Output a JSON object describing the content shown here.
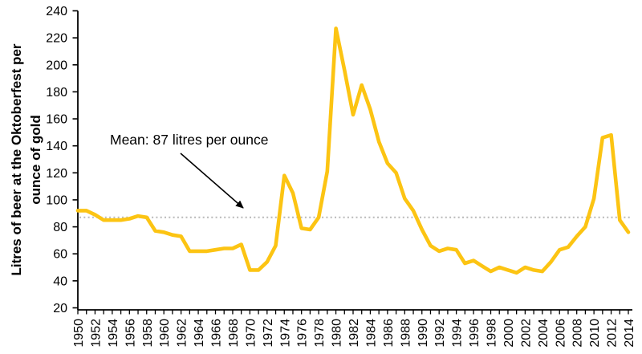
{
  "chart_data": {
    "type": "line",
    "title": "",
    "ylabel_lines": [
      "Litres of beer at the Oktoberfest per",
      "ounce of gold"
    ],
    "xlabel": "",
    "x": [
      1950,
      1951,
      1952,
      1953,
      1954,
      1955,
      1956,
      1957,
      1958,
      1959,
      1960,
      1961,
      1962,
      1963,
      1964,
      1965,
      1966,
      1967,
      1968,
      1969,
      1970,
      1971,
      1972,
      1973,
      1974,
      1975,
      1976,
      1977,
      1978,
      1979,
      1980,
      1981,
      1982,
      1983,
      1984,
      1985,
      1986,
      1987,
      1988,
      1989,
      1990,
      1991,
      1992,
      1993,
      1994,
      1995,
      1996,
      1997,
      1998,
      1999,
      2000,
      2001,
      2002,
      2003,
      2004,
      2005,
      2006,
      2007,
      2008,
      2009,
      2010,
      2011,
      2012,
      2013,
      2014
    ],
    "series": [
      {
        "name": "Litres of beer at the Oktoberfest per ounce of gold",
        "values": [
          92,
          92,
          89,
          85,
          85,
          85,
          86,
          88,
          87,
          77,
          76,
          74,
          73,
          62,
          62,
          62,
          63,
          64,
          64,
          67,
          48,
          48,
          54,
          66,
          118,
          105,
          79,
          78,
          87,
          121,
          227,
          196,
          163,
          185,
          167,
          143,
          127,
          120,
          101,
          92,
          78,
          66,
          62,
          64,
          63,
          53,
          55,
          51,
          47,
          50,
          48,
          46,
          50,
          48,
          47,
          54,
          63,
          65,
          73,
          80,
          101,
          146,
          148,
          85,
          76
        ]
      }
    ],
    "xlim": [
      1950,
      2014
    ],
    "ylim": [
      20,
      240
    ],
    "y_ticks": [
      20,
      40,
      60,
      80,
      100,
      120,
      140,
      160,
      180,
      200,
      220,
      240
    ],
    "x_tick_labels": [
      "1950",
      "1952",
      "1954",
      "1956",
      "1958",
      "1960",
      "1962",
      "1964",
      "1966",
      "1968",
      "1970",
      "1972",
      "1974",
      "1976",
      "1978",
      "1980",
      "1982",
      "1984",
      "1986",
      "1988",
      "1990",
      "1992",
      "1994",
      "1996",
      "1998",
      "2000",
      "2002",
      "2004",
      "2006",
      "2008",
      "2010",
      "2012",
      "2014"
    ],
    "x_minor_tick_every": 1,
    "x_label_every": 2,
    "grid": false,
    "legend": "none",
    "annotation": {
      "text": "Mean: 87 litres per ounce",
      "mean_value": 87
    },
    "colors": {
      "line": "#FCC413",
      "mean_line": "#BCBCBC",
      "axis": "#000000",
      "text": "#000000",
      "background": "#FFFFFF"
    }
  }
}
